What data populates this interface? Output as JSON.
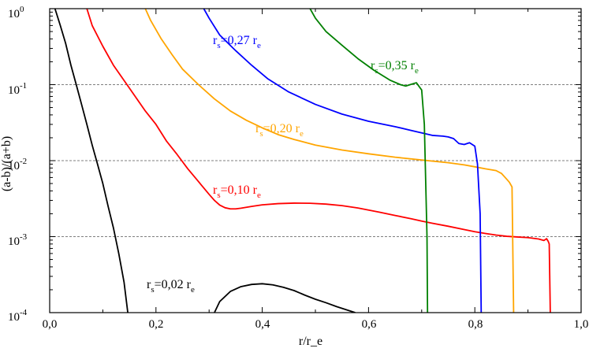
{
  "chart_data": {
    "type": "line",
    "title": "",
    "xlabel": "r/r_e",
    "ylabel": "(a-b)/(a+b)",
    "xlim": [
      0.0,
      1.0
    ],
    "ylim": [
      0.0001,
      1
    ],
    "yscale": "log",
    "x_ticks": [
      "0,0",
      "0,2",
      "0,4",
      "0,6",
      "0,8",
      "1,0"
    ],
    "y_ticks": [
      {
        "base": "10",
        "exp": "-4",
        "value": 0.0001
      },
      {
        "base": "10",
        "exp": "-3",
        "value": 0.001
      },
      {
        "base": "10",
        "exp": "-2",
        "value": 0.01
      },
      {
        "base": "10",
        "exp": "-1",
        "value": 0.1
      },
      {
        "base": "10",
        "exp": "0",
        "value": 1
      }
    ],
    "reference_lines": [
      0.1,
      0.01,
      0.001
    ],
    "series": [
      {
        "name": "rs=0,02 re",
        "label": {
          "r": "r",
          "sub1": "s",
          "text": "=0,02 r",
          "sub2": "e"
        },
        "color": "#000000",
        "segments": [
          [
            [
              0.01,
              1.0
            ],
            [
              0.02,
              0.6
            ],
            [
              0.03,
              0.35
            ],
            [
              0.04,
              0.18
            ],
            [
              0.05,
              0.1
            ],
            [
              0.06,
              0.055
            ],
            [
              0.07,
              0.03
            ],
            [
              0.08,
              0.016
            ],
            [
              0.09,
              0.009
            ],
            [
              0.1,
              0.005
            ],
            [
              0.11,
              0.0025
            ],
            [
              0.12,
              0.0013
            ],
            [
              0.13,
              0.0006
            ],
            [
              0.14,
              0.00025
            ],
            [
              0.147,
              0.0001
            ]
          ],
          [
            [
              0.31,
              0.0001
            ],
            [
              0.32,
              0.00014
            ],
            [
              0.34,
              0.00019
            ],
            [
              0.36,
              0.00022
            ],
            [
              0.38,
              0.000235
            ],
            [
              0.4,
              0.00024
            ],
            [
              0.42,
              0.000232
            ],
            [
              0.44,
              0.000215
            ],
            [
              0.46,
              0.000195
            ],
            [
              0.48,
              0.00017
            ],
            [
              0.5,
              0.00015
            ],
            [
              0.52,
              0.000135
            ],
            [
              0.54,
              0.00012
            ],
            [
              0.56,
              0.000108
            ],
            [
              0.575,
              0.0001
            ]
          ]
        ]
      },
      {
        "name": "rs=0,10 re",
        "label": {
          "r": "r",
          "sub1": "s",
          "text": "=0,10 r",
          "sub2": "e"
        },
        "color": "#ff0000",
        "segments": [
          [
            [
              0.07,
              1.0
            ],
            [
              0.08,
              0.6
            ],
            [
              0.1,
              0.32
            ],
            [
              0.12,
              0.18
            ],
            [
              0.15,
              0.09
            ],
            [
              0.18,
              0.045
            ],
            [
              0.2,
              0.03
            ],
            [
              0.22,
              0.018
            ],
            [
              0.24,
              0.012
            ],
            [
              0.26,
              0.0078
            ],
            [
              0.28,
              0.0053
            ],
            [
              0.3,
              0.0036
            ],
            [
              0.31,
              0.003
            ],
            [
              0.32,
              0.0026
            ],
            [
              0.33,
              0.0024
            ],
            [
              0.34,
              0.00232
            ],
            [
              0.35,
              0.00232
            ],
            [
              0.36,
              0.00237
            ],
            [
              0.38,
              0.0025
            ],
            [
              0.4,
              0.00262
            ],
            [
              0.43,
              0.00272
            ],
            [
              0.46,
              0.00276
            ],
            [
              0.49,
              0.00275
            ],
            [
              0.52,
              0.00268
            ],
            [
              0.55,
              0.00256
            ],
            [
              0.58,
              0.00238
            ],
            [
              0.6,
              0.00224
            ],
            [
              0.62,
              0.0021
            ],
            [
              0.65,
              0.0019
            ],
            [
              0.68,
              0.00172
            ],
            [
              0.7,
              0.0016
            ],
            [
              0.72,
              0.0015
            ],
            [
              0.75,
              0.00137
            ],
            [
              0.78,
              0.00124
            ],
            [
              0.8,
              0.00116
            ],
            [
              0.82,
              0.0011
            ],
            [
              0.84,
              0.00105
            ],
            [
              0.86,
              0.00101
            ],
            [
              0.88,
              0.00099
            ],
            [
              0.9,
              0.00097
            ],
            [
              0.92,
              0.00093
            ],
            [
              0.93,
              0.00089
            ],
            [
              0.935,
              0.00094
            ],
            [
              0.938,
              0.00087
            ],
            [
              0.94,
              0.0008
            ],
            [
              0.942,
              0.0001
            ]
          ]
        ]
      },
      {
        "name": "rs=0,20 re",
        "label": {
          "r": "r",
          "sub1": "s",
          "text": "=0,20 r",
          "sub2": "e"
        },
        "color": "#ffa500",
        "segments": [
          [
            [
              0.18,
              1.0
            ],
            [
              0.19,
              0.7
            ],
            [
              0.21,
              0.4
            ],
            [
              0.23,
              0.25
            ],
            [
              0.25,
              0.16
            ],
            [
              0.28,
              0.1
            ],
            [
              0.31,
              0.065
            ],
            [
              0.34,
              0.045
            ],
            [
              0.37,
              0.034
            ],
            [
              0.4,
              0.027
            ],
            [
              0.43,
              0.022
            ],
            [
              0.46,
              0.019
            ],
            [
              0.5,
              0.016
            ],
            [
              0.55,
              0.0138
            ],
            [
              0.6,
              0.0123
            ],
            [
              0.65,
              0.0111
            ],
            [
              0.7,
              0.0102
            ],
            [
              0.75,
              0.0094
            ],
            [
              0.78,
              0.0088
            ],
            [
              0.8,
              0.0083
            ],
            [
              0.82,
              0.0078
            ],
            [
              0.84,
              0.0074
            ],
            [
              0.85,
              0.0068
            ],
            [
              0.86,
              0.0057
            ],
            [
              0.865,
              0.0052
            ],
            [
              0.87,
              0.0045
            ],
            [
              0.873,
              0.0001
            ]
          ]
        ]
      },
      {
        "name": "rs=0,27 re",
        "label": {
          "r": "r",
          "sub1": "s",
          "text": "=0,27 r",
          "sub2": "e"
        },
        "color": "#0000ff",
        "segments": [
          [
            [
              0.29,
              1.0
            ],
            [
              0.3,
              0.75
            ],
            [
              0.32,
              0.45
            ],
            [
              0.35,
              0.28
            ],
            [
              0.38,
              0.18
            ],
            [
              0.41,
              0.12
            ],
            [
              0.45,
              0.08
            ],
            [
              0.5,
              0.055
            ],
            [
              0.55,
              0.041
            ],
            [
              0.6,
              0.033
            ],
            [
              0.65,
              0.028
            ],
            [
              0.68,
              0.025
            ],
            [
              0.7,
              0.0232
            ],
            [
              0.72,
              0.0215
            ],
            [
              0.74,
              0.021
            ],
            [
              0.75,
              0.0205
            ],
            [
              0.76,
              0.0195
            ],
            [
              0.77,
              0.0168
            ],
            [
              0.78,
              0.0163
            ],
            [
              0.79,
              0.0172
            ],
            [
              0.8,
              0.0155
            ],
            [
              0.805,
              0.009
            ],
            [
              0.81,
              0.002
            ],
            [
              0.812,
              0.0001
            ]
          ]
        ]
      },
      {
        "name": "rs=0,35 re",
        "label": {
          "r": "r",
          "sub1": "s",
          "text": "=0,35 r",
          "sub2": "e"
        },
        "color": "#008000",
        "segments": [
          [
            [
              0.49,
              1.0
            ],
            [
              0.5,
              0.75
            ],
            [
              0.52,
              0.5
            ],
            [
              0.55,
              0.33
            ],
            [
              0.58,
              0.22
            ],
            [
              0.61,
              0.155
            ],
            [
              0.64,
              0.115
            ],
            [
              0.66,
              0.1
            ],
            [
              0.67,
              0.096
            ],
            [
              0.68,
              0.101
            ],
            [
              0.69,
              0.106
            ],
            [
              0.7,
              0.085
            ],
            [
              0.705,
              0.03
            ],
            [
              0.71,
              0.001
            ],
            [
              0.711,
              0.0001
            ]
          ]
        ]
      }
    ]
  }
}
